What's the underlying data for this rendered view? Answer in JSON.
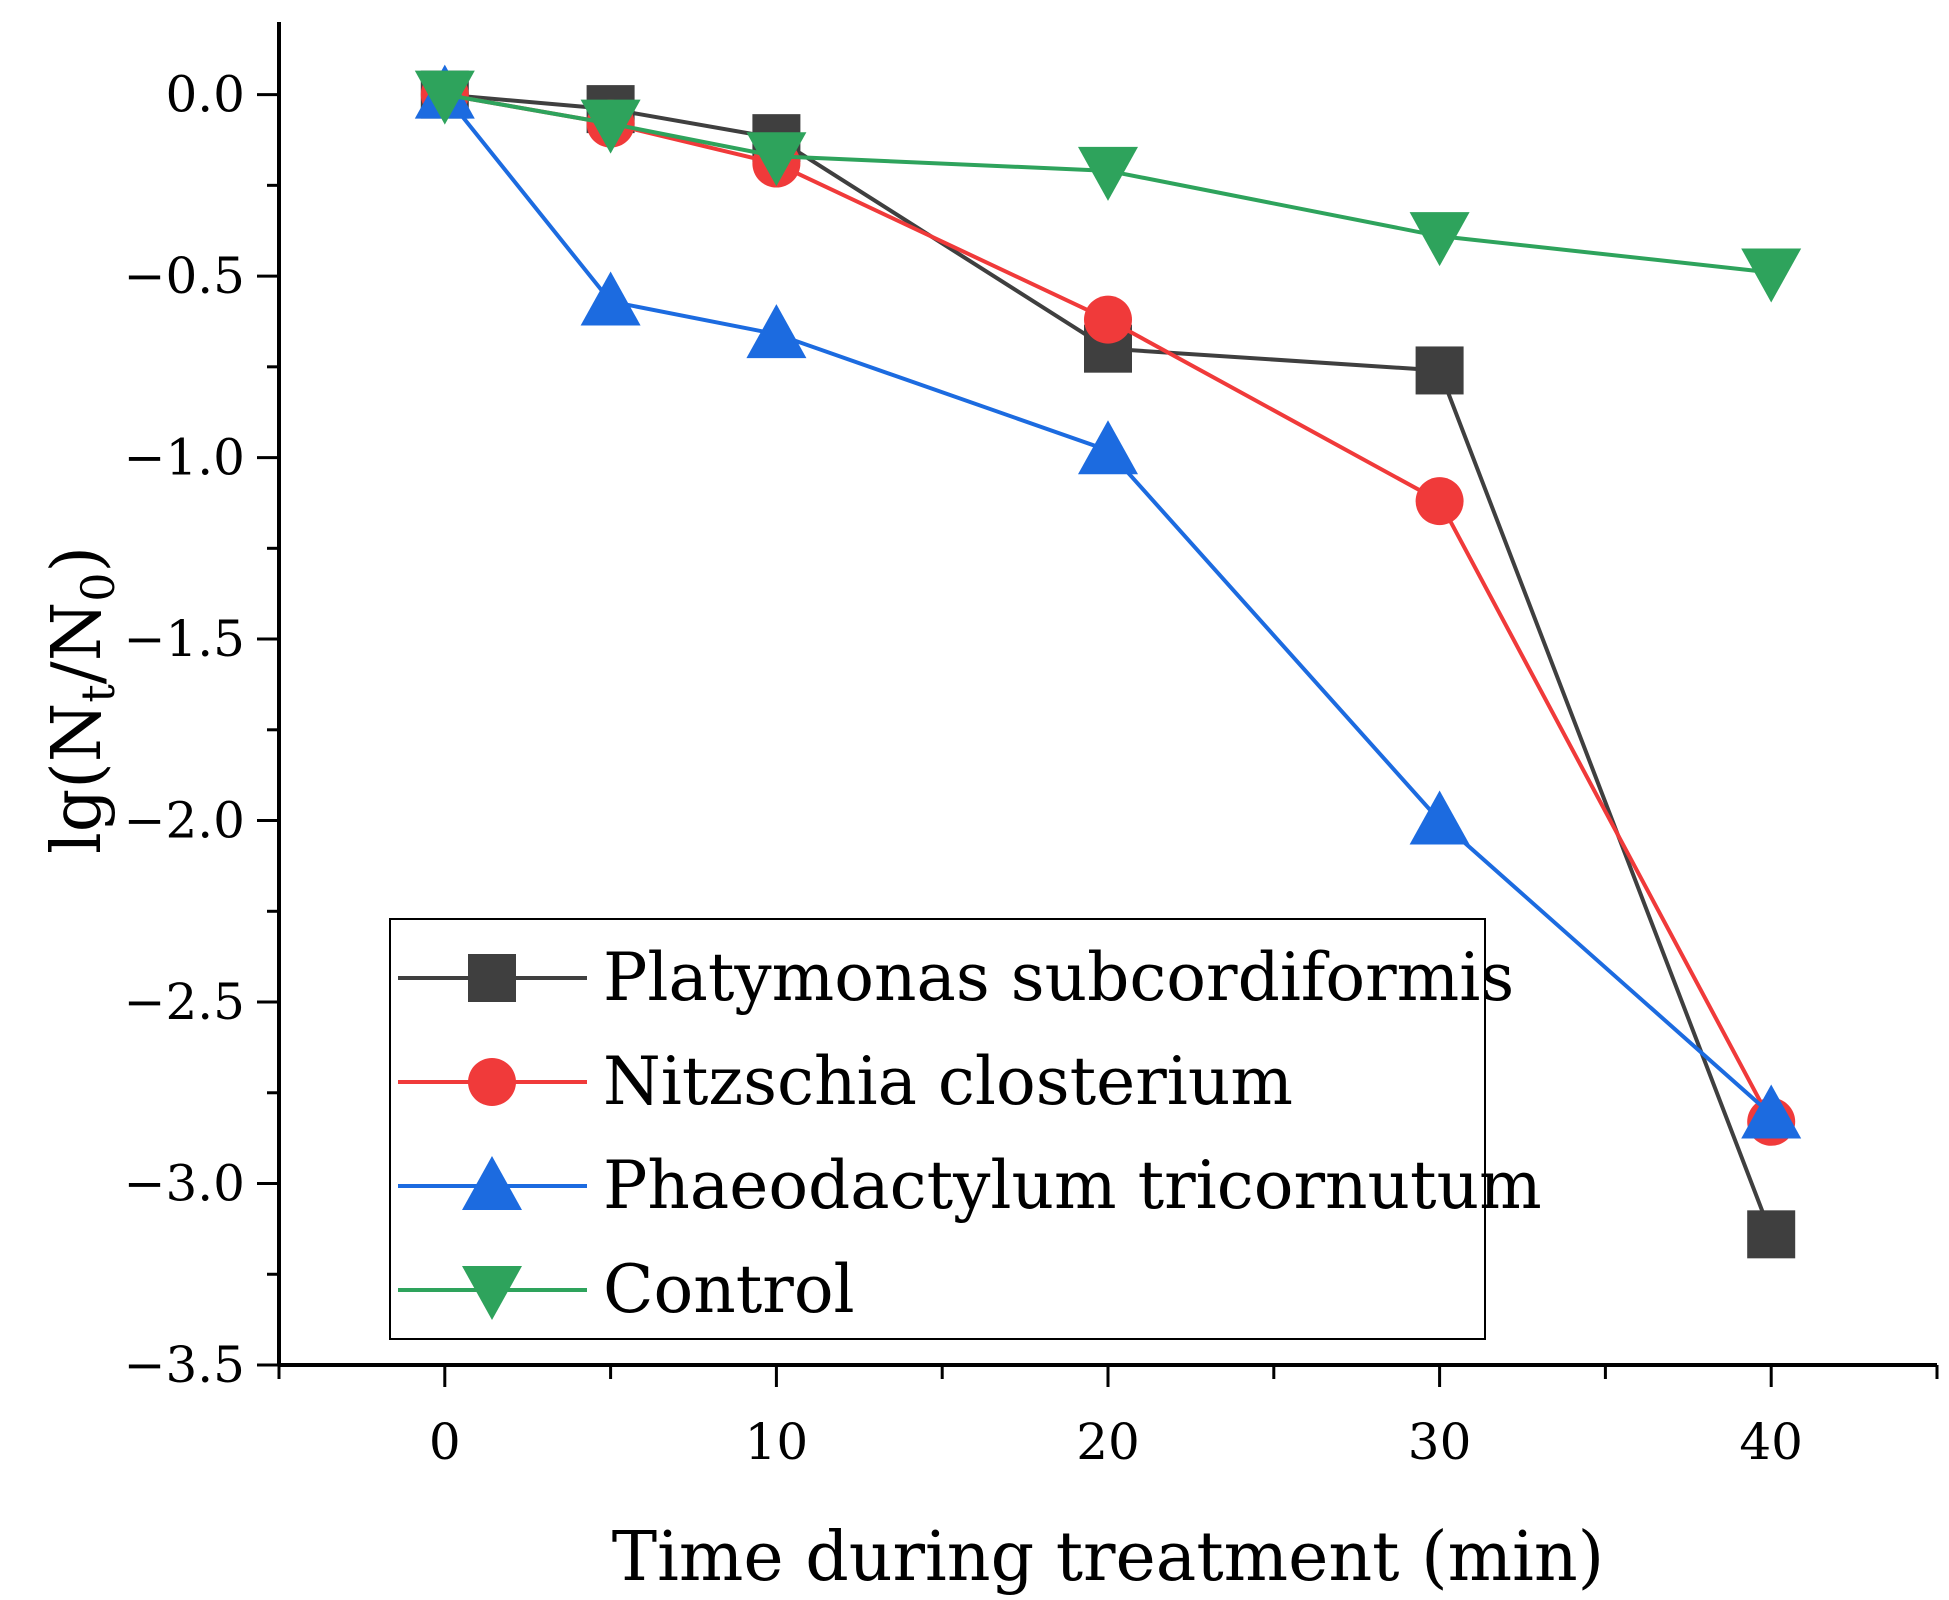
{
  "chart_data": {
    "type": "line",
    "title": "",
    "xlabel": "Time during treatment (min)",
    "ylabel_parts": {
      "base": "lg(N",
      "sub1": "t",
      "mid": "/N",
      "sub2": "0",
      "end": ")"
    },
    "xlim": [
      -5,
      45
    ],
    "ylim": [
      -3.5,
      0.2
    ],
    "xticks": [
      0,
      10,
      20,
      30,
      40
    ],
    "xtick_labels": [
      "0",
      "10",
      "20",
      "30",
      "40"
    ],
    "yticks": [
      0.0,
      -0.5,
      -1.0,
      -1.5,
      -2.0,
      -2.5,
      -3.0,
      -3.5
    ],
    "ytick_labels": [
      "0.0",
      "−0.5",
      "−1.0",
      "−1.5",
      "−2.0",
      "−2.5",
      "−3.0",
      "−3.5"
    ],
    "grid": false,
    "legend_placement": "bottom-left",
    "x": [
      0,
      5,
      10,
      20,
      30,
      40
    ],
    "series": [
      {
        "name": "Platymonas subcordiformis",
        "marker": "square",
        "color": "#3f3f3f",
        "values": [
          0,
          -0.04,
          -0.12,
          -0.7,
          -0.76,
          -3.14
        ]
      },
      {
        "name": "Nitzschia closterium",
        "marker": "circle",
        "color": "#f03a3a",
        "values": [
          0,
          -0.08,
          -0.19,
          -0.62,
          -1.12,
          -2.83
        ]
      },
      {
        "name": "Phaeodactylum tricornutum",
        "marker": "triangle-up",
        "color": "#1c6be0",
        "values": [
          0,
          -0.57,
          -0.66,
          -0.98,
          -2.0,
          -2.81
        ]
      },
      {
        "name": "Control",
        "marker": "triangle-down",
        "color": "#2ea35c",
        "values": [
          0,
          -0.08,
          -0.17,
          -0.21,
          -0.39,
          -0.49
        ]
      }
    ]
  }
}
